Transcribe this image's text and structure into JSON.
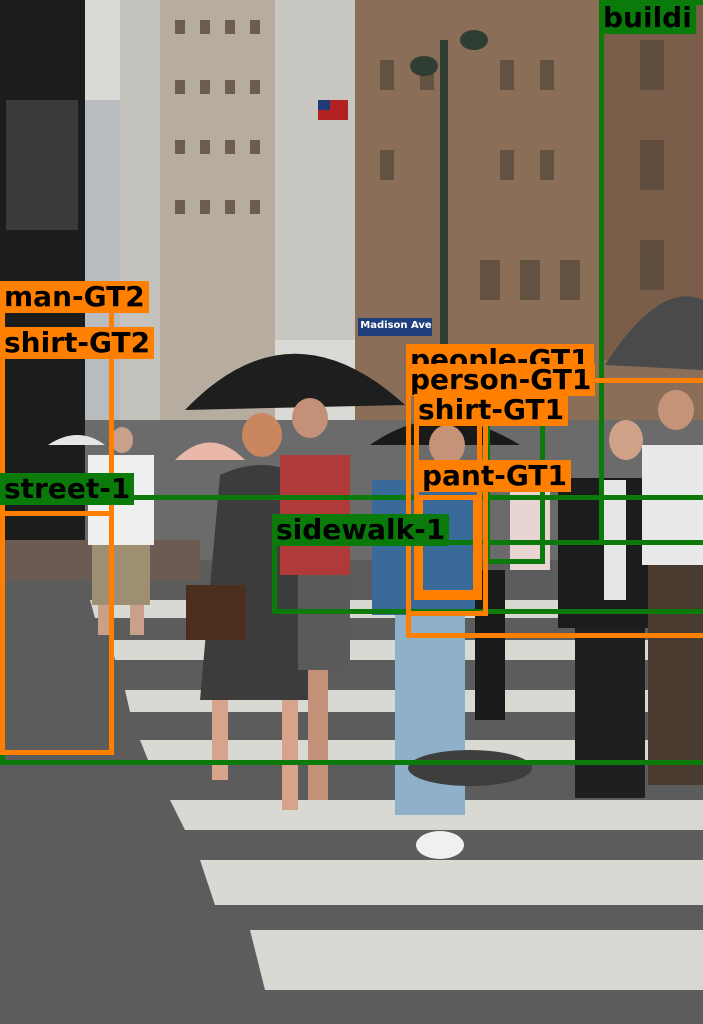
{
  "image": {
    "description_colors": {
      "orange": "#ff8000",
      "green": "#0a7a0a"
    }
  },
  "annotations": [
    {
      "label": "buildi",
      "color": "green"
    },
    {
      "label": "man-GT2",
      "color": "orange"
    },
    {
      "label": "shirt-GT2",
      "color": "orange"
    },
    {
      "label": "people-GT1",
      "color": "orange"
    },
    {
      "label": "person-GT1",
      "color": "orange"
    },
    {
      "label": "shirt-GT1",
      "color": "orange"
    },
    {
      "label": "pant-GT1",
      "color": "orange"
    },
    {
      "label": "street-1",
      "color": "green"
    },
    {
      "label": "sidewalk-1",
      "color": "green"
    },
    {
      "label": "Madison Ave",
      "color": "sign"
    }
  ]
}
